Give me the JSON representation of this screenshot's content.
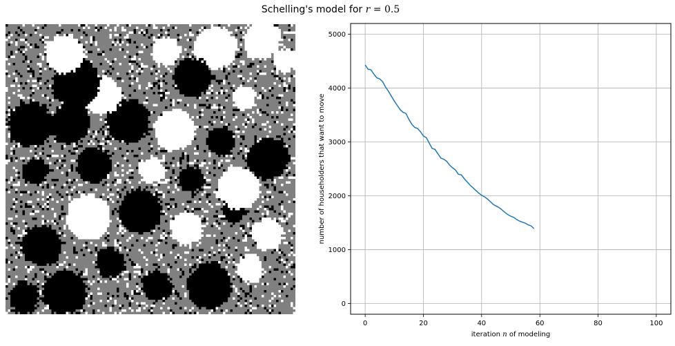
{
  "figure": {
    "title_prefix": "Schelling's model for ",
    "title_var": "r",
    "title_eq": " = 0.5"
  },
  "chart_data": [
    {
      "type": "heatmap",
      "description": "120x120 grid: black and white agents clustered into blobs, gray agents, scattered empty (white) cells",
      "grid_size": 120,
      "colors": {
        "group_a": "#000000",
        "group_b": "#ffffff",
        "group_c": "#808080"
      }
    },
    {
      "type": "line",
      "xlabel_pre": "iteration ",
      "xlabel_var": "n",
      "xlabel_post": " of modeling",
      "ylabel": "number of householders that want to move",
      "xlim": [
        -5,
        105
      ],
      "ylim": [
        -200,
        5200
      ],
      "xticks": [
        0,
        20,
        40,
        60,
        80,
        100
      ],
      "yticks": [
        0,
        1000,
        2000,
        3000,
        4000,
        5000
      ],
      "grid": true,
      "color": "#1f77b4",
      "x": [
        0,
        1,
        2,
        3,
        4,
        5,
        6,
        7,
        8,
        9,
        10,
        11,
        12,
        13,
        14,
        15,
        16,
        17,
        18,
        19,
        20,
        21,
        22,
        23,
        24,
        25,
        26,
        27,
        28,
        29,
        30,
        31,
        32,
        33,
        34,
        35,
        36,
        37,
        38,
        39,
        40,
        41,
        42,
        43,
        44,
        45,
        46,
        47,
        48,
        49,
        50,
        51,
        52,
        53,
        54,
        55,
        56,
        57,
        58
      ],
      "y": [
        4430,
        4350,
        4340,
        4260,
        4190,
        4170,
        4120,
        4020,
        3940,
        3850,
        3760,
        3680,
        3600,
        3550,
        3530,
        3420,
        3330,
        3270,
        3250,
        3190,
        3110,
        3080,
        2980,
        2880,
        2860,
        2780,
        2700,
        2680,
        2640,
        2570,
        2520,
        2480,
        2400,
        2390,
        2320,
        2260,
        2200,
        2150,
        2100,
        2050,
        2010,
        1980,
        1940,
        1890,
        1840,
        1810,
        1780,
        1740,
        1690,
        1650,
        1620,
        1600,
        1560,
        1530,
        1510,
        1490,
        1460,
        1440,
        1390
      ]
    }
  ]
}
